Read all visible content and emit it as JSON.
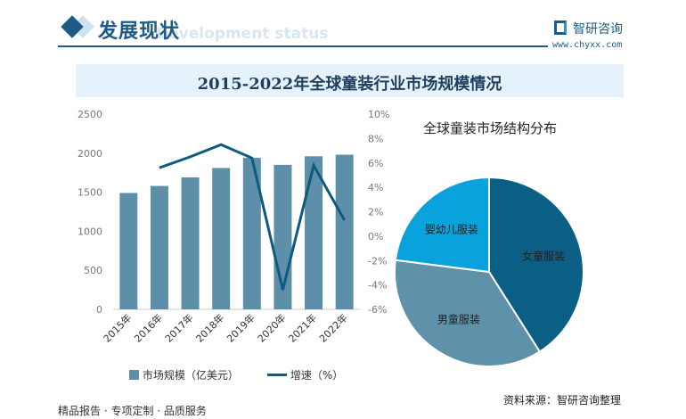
{
  "header": {
    "title": "发展现状",
    "subtitle": "Development status",
    "logo": "智研咨询",
    "url": "www.chyxx.com"
  },
  "footer": {
    "left": "精品报告 · 专项定制 · 品质服务",
    "source": "资料来源：智研咨询整理"
  },
  "colors": {
    "bar": "#5e8fa8",
    "line": "#0e5a80",
    "pie": [
      "#0c5f84",
      "#5f91a9",
      "#0aa2dc"
    ]
  },
  "chart_data": [
    {
      "type": "bar+line",
      "title": "2015-2022年全球童装行业市场规模情况",
      "categories": [
        "2015年",
        "2016年",
        "2017年",
        "2018年",
        "2019年",
        "2020年",
        "2021年",
        "2022年"
      ],
      "series": [
        {
          "name": "市场规模（亿美元）",
          "type": "bar",
          "axis": "left",
          "values": [
            1490,
            1580,
            1690,
            1810,
            1940,
            1850,
            1960,
            1980
          ]
        },
        {
          "name": "增速（%）",
          "type": "line",
          "axis": "right",
          "values": [
            null,
            5.6,
            6.5,
            7.5,
            6.4,
            -4.4,
            5.8,
            1.3
          ]
        }
      ],
      "ylim": [
        0,
        2500
      ],
      "yticks": [
        "0",
        "500",
        "1000",
        "1500",
        "2000",
        "2500"
      ],
      "y2lim": [
        -6,
        10
      ],
      "y2ticks": [
        "-6%",
        "-4%",
        "-2%",
        "0%",
        "2%",
        "4%",
        "6%",
        "8%",
        "10%"
      ],
      "legend": "bottom"
    },
    {
      "type": "pie",
      "title": "全球童装市场结构分布",
      "labels": [
        "女童服装",
        "男童服装",
        "婴幼儿服装"
      ],
      "values": [
        41,
        36,
        23
      ]
    }
  ]
}
